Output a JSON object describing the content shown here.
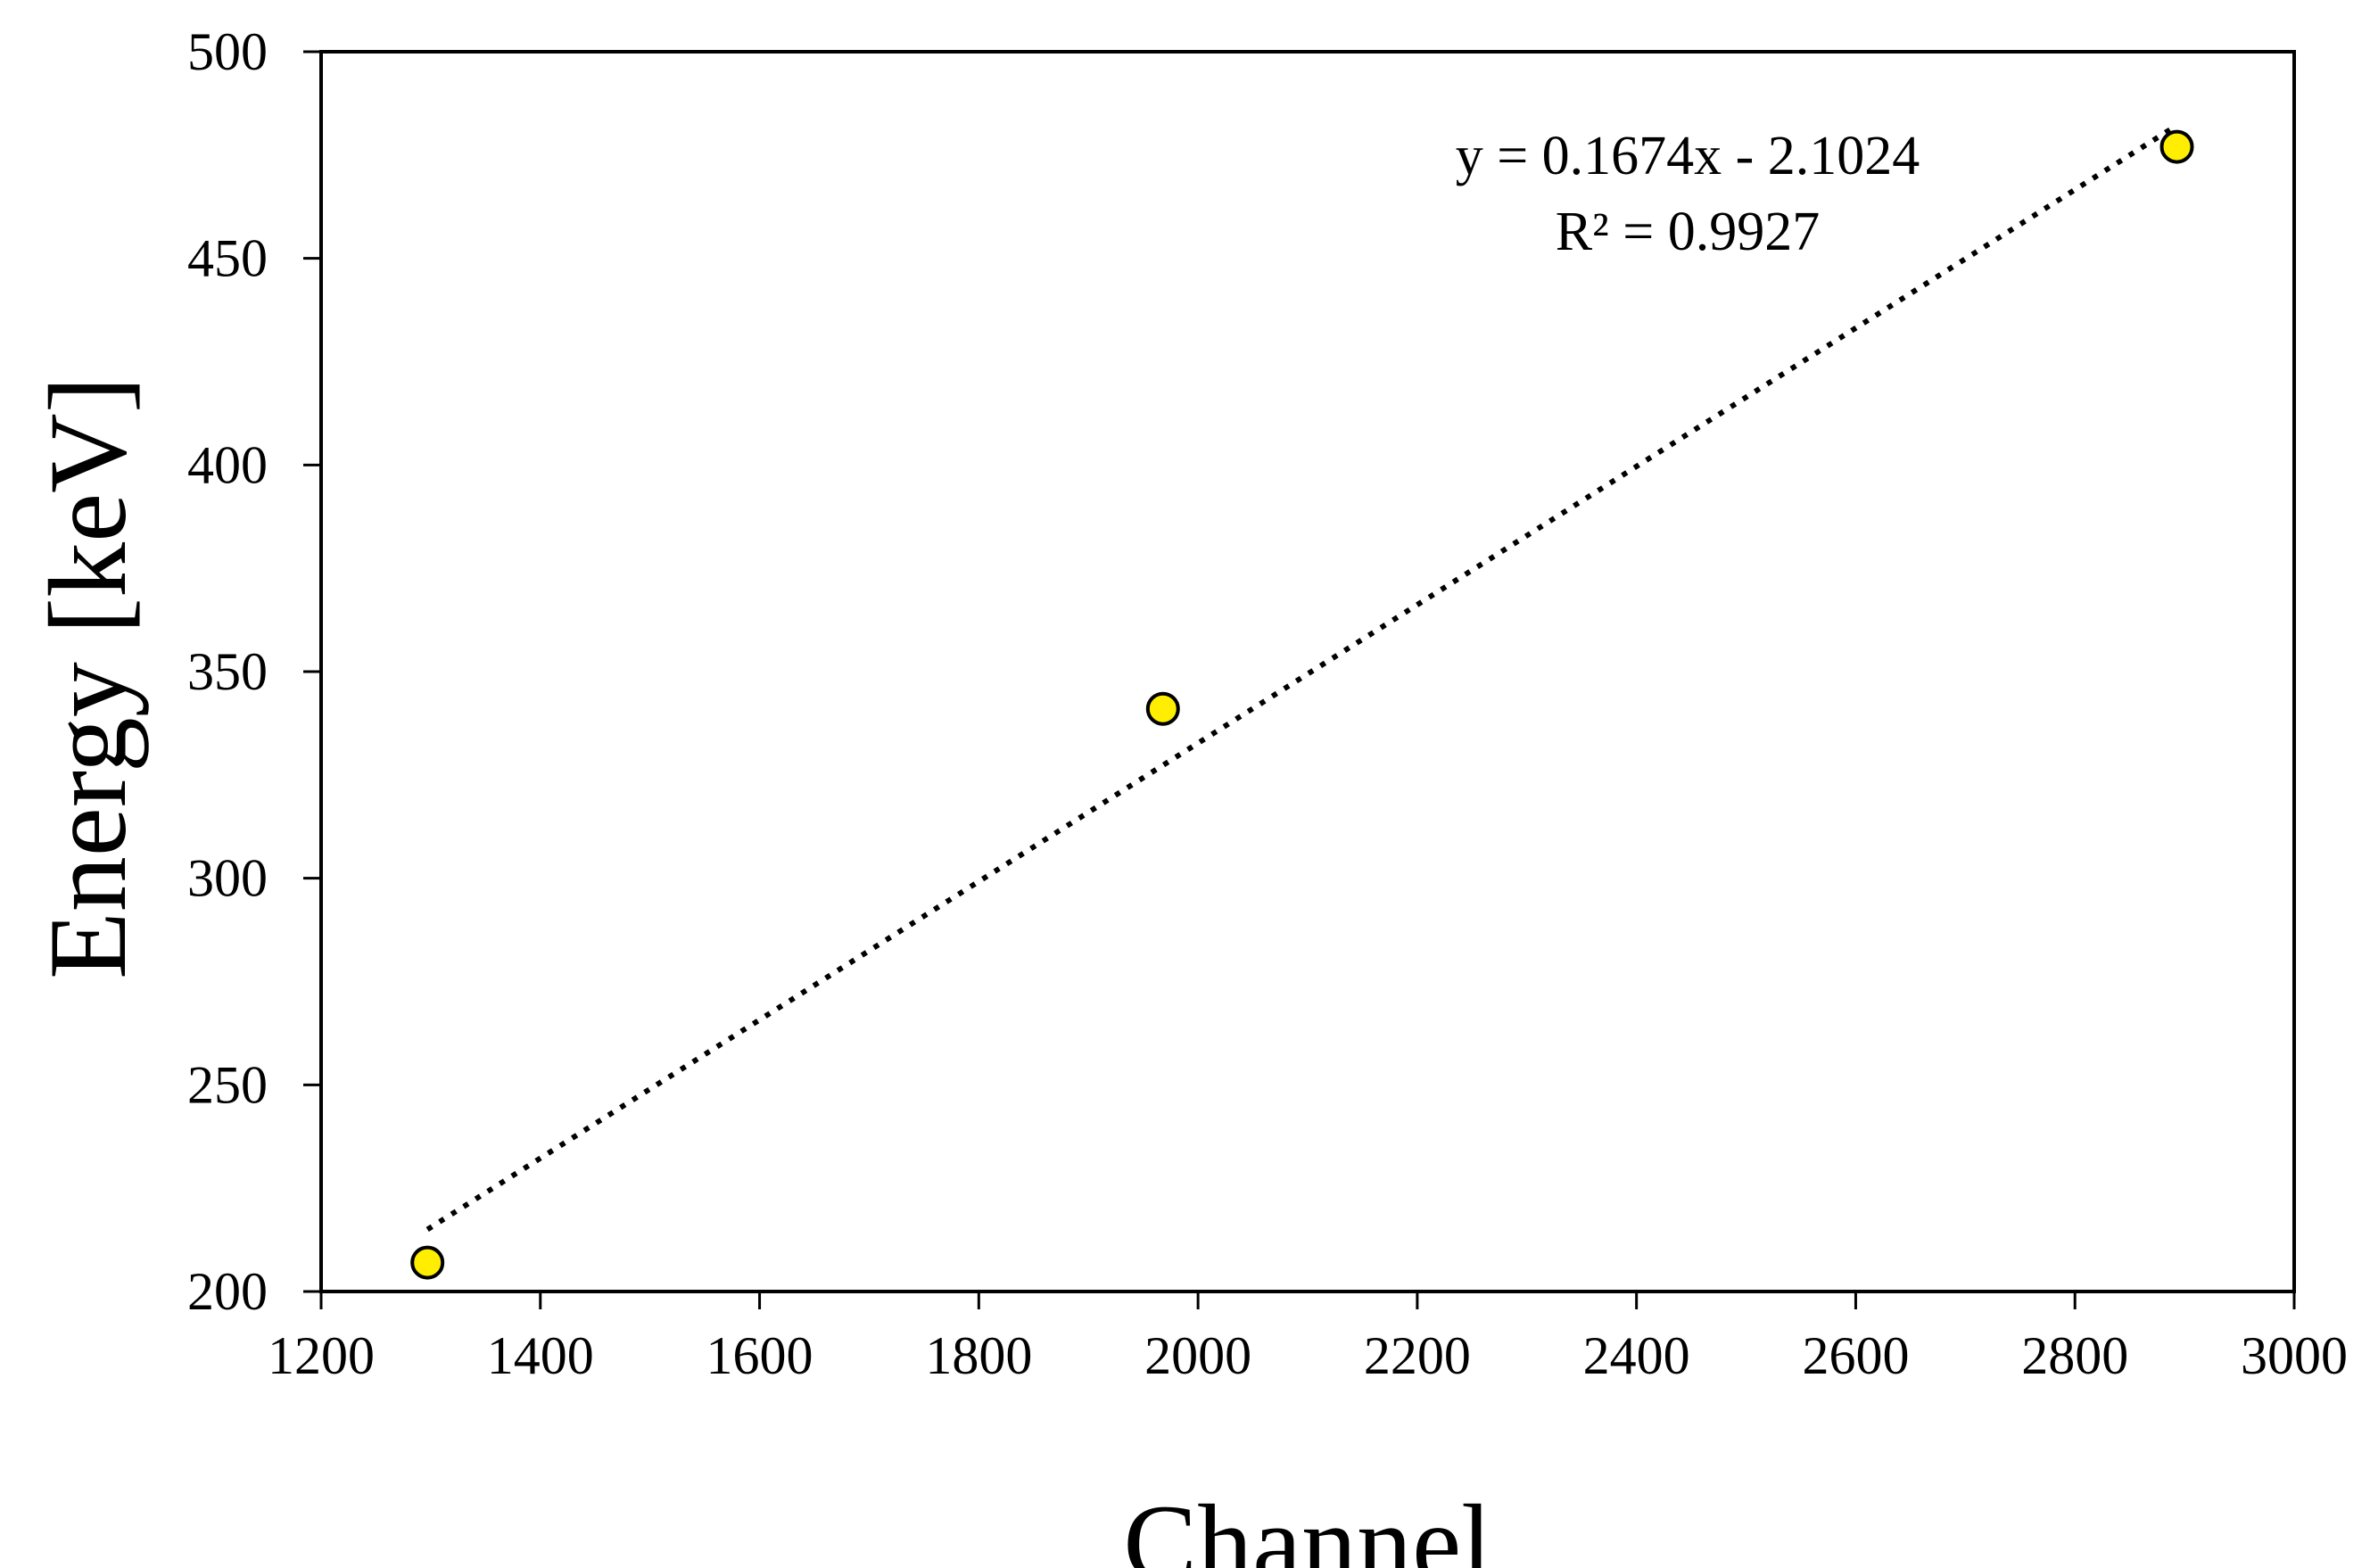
{
  "chart_data": {
    "type": "scatter",
    "xlabel": "Channel",
    "ylabel": "Energy [keV]",
    "xlim": [
      1200,
      3000
    ],
    "ylim": [
      200,
      500
    ],
    "x_ticks": [
      1200,
      1400,
      1600,
      1800,
      2000,
      2200,
      2400,
      2600,
      2800,
      3000
    ],
    "y_ticks": [
      200,
      250,
      300,
      350,
      400,
      450,
      500
    ],
    "grid": false,
    "series": [
      {
        "points": [
          {
            "x": 1297,
            "y": 207
          },
          {
            "x": 1968,
            "y": 341
          },
          {
            "x": 2893,
            "y": 477
          }
        ],
        "marker_color": "#ffee00",
        "marker_edge_color": "#000000"
      }
    ],
    "trendline": {
      "type": "linear",
      "style": "dotted",
      "slope": 0.1674,
      "intercept": -2.1024,
      "x_range": [
        1297,
        2893
      ],
      "equation_text": "y = 0.1674x  - 2.1024",
      "r2_text": "R² = 0.9927"
    }
  }
}
